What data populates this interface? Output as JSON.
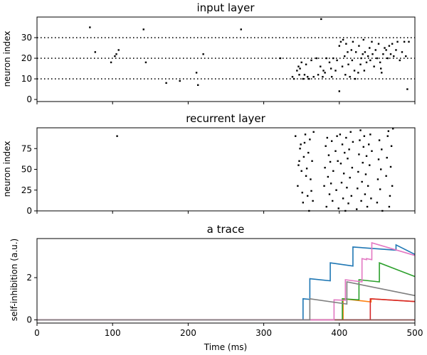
{
  "chart_data": [
    {
      "type": "scatter",
      "title": "input layer",
      "xlabel": "",
      "ylabel": "neuron index",
      "xlim": [
        0,
        500
      ],
      "ylim": [
        -1,
        40
      ],
      "yticks": [
        0,
        10,
        20,
        30
      ],
      "hlines": [
        10,
        20,
        30
      ],
      "points": [
        [
          70,
          35
        ],
        [
          77,
          23
        ],
        [
          98,
          18
        ],
        [
          103,
          21
        ],
        [
          105,
          22
        ],
        [
          108,
          24
        ],
        [
          141,
          34
        ],
        [
          144,
          18
        ],
        [
          171,
          8
        ],
        [
          189,
          9
        ],
        [
          211,
          13
        ],
        [
          213,
          7
        ],
        [
          220,
          22
        ],
        [
          270,
          34
        ],
        [
          322,
          20
        ],
        [
          338,
          11
        ],
        [
          340,
          10
        ],
        [
          344,
          14
        ],
        [
          346,
          16
        ],
        [
          347,
          12
        ],
        [
          348,
          15
        ],
        [
          350,
          18
        ],
        [
          352,
          10
        ],
        [
          354,
          12
        ],
        [
          356,
          17
        ],
        [
          358,
          11
        ],
        [
          360,
          10
        ],
        [
          363,
          19
        ],
        [
          366,
          11
        ],
        [
          370,
          20
        ],
        [
          372,
          12
        ],
        [
          375,
          16
        ],
        [
          376,
          39
        ],
        [
          378,
          11
        ],
        [
          379,
          14
        ],
        [
          381,
          13
        ],
        [
          383,
          20
        ],
        [
          387,
          18
        ],
        [
          389,
          15
        ],
        [
          390,
          11
        ],
        [
          392,
          20
        ],
        [
          395,
          14
        ],
        [
          397,
          19
        ],
        [
          400,
          4
        ],
        [
          400,
          26
        ],
        [
          402,
          28
        ],
        [
          404,
          16
        ],
        [
          405,
          29
        ],
        [
          407,
          21
        ],
        [
          408,
          12
        ],
        [
          409,
          27
        ],
        [
          411,
          23
        ],
        [
          412,
          17
        ],
        [
          414,
          11
        ],
        [
          416,
          24
        ],
        [
          417,
          19
        ],
        [
          418,
          28
        ],
        [
          420,
          14
        ],
        [
          421,
          10
        ],
        [
          422,
          23
        ],
        [
          425,
          13
        ],
        [
          426,
          26
        ],
        [
          428,
          17
        ],
        [
          429,
          20
        ],
        [
          431,
          22
        ],
        [
          432,
          29
        ],
        [
          433,
          14
        ],
        [
          434,
          23
        ],
        [
          436,
          18
        ],
        [
          438,
          21
        ],
        [
          440,
          25
        ],
        [
          441,
          19
        ],
        [
          443,
          28
        ],
        [
          444,
          22
        ],
        [
          446,
          16
        ],
        [
          448,
          24
        ],
        [
          450,
          20
        ],
        [
          452,
          27
        ],
        [
          454,
          18
        ],
        [
          456,
          13
        ],
        [
          458,
          22
        ],
        [
          460,
          25
        ],
        [
          462,
          24
        ],
        [
          464,
          20
        ],
        [
          466,
          26
        ],
        [
          468,
          22
        ],
        [
          470,
          27
        ],
        [
          472,
          21
        ],
        [
          475,
          24
        ],
        [
          477,
          28
        ],
        [
          480,
          19
        ],
        [
          483,
          23
        ],
        [
          486,
          28
        ],
        [
          488,
          21
        ],
        [
          490,
          5
        ],
        [
          492,
          28
        ],
        [
          455,
          15
        ]
      ]
    },
    {
      "type": "scatter",
      "title": "recurrent layer",
      "xlabel": "",
      "ylabel": "neuron index",
      "xlim": [
        0,
        500
      ],
      "ylim": [
        0,
        100
      ],
      "yticks": [
        0,
        25,
        50,
        75
      ],
      "points": [
        [
          106,
          90
        ],
        [
          342,
          90
        ],
        [
          345,
          30
        ],
        [
          346,
          55
        ],
        [
          347,
          60
        ],
        [
          348,
          75
        ],
        [
          349,
          80
        ],
        [
          350,
          48
        ],
        [
          351,
          22
        ],
        [
          352,
          10
        ],
        [
          353,
          65
        ],
        [
          354,
          82
        ],
        [
          355,
          92
        ],
        [
          356,
          42
        ],
        [
          357,
          51
        ],
        [
          358,
          18
        ],
        [
          359,
          70
        ],
        [
          360,
          0
        ],
        [
          361,
          86
        ],
        [
          362,
          38
        ],
        [
          363,
          24
        ],
        [
          364,
          60
        ],
        [
          365,
          12
        ],
        [
          366,
          95
        ],
        [
          380,
          30
        ],
        [
          381,
          52
        ],
        [
          382,
          78
        ],
        [
          383,
          5
        ],
        [
          384,
          88
        ],
        [
          385,
          41
        ],
        [
          386,
          67
        ],
        [
          387,
          20
        ],
        [
          388,
          59
        ],
        [
          389,
          33
        ],
        [
          390,
          84
        ],
        [
          391,
          12
        ],
        [
          392,
          48
        ],
        [
          395,
          72
        ],
        [
          396,
          25
        ],
        [
          397,
          90
        ],
        [
          398,
          60
        ],
        [
          399,
          3
        ],
        [
          401,
          92
        ],
        [
          402,
          57
        ],
        [
          403,
          34
        ],
        [
          404,
          80
        ],
        [
          405,
          15
        ],
        [
          406,
          45
        ],
        [
          407,
          70
        ],
        [
          408,
          0
        ],
        [
          409,
          88
        ],
        [
          410,
          28
        ],
        [
          411,
          63
        ],
        [
          412,
          9
        ],
        [
          413,
          74
        ],
        [
          414,
          40
        ],
        [
          415,
          95
        ],
        [
          416,
          18
        ],
        [
          417,
          52
        ],
        [
          418,
          83
        ],
        [
          423,
          2
        ],
        [
          424,
          27
        ],
        [
          425,
          47
        ],
        [
          426,
          68
        ],
        [
          427,
          85
        ],
        [
          428,
          97
        ],
        [
          429,
          12
        ],
        [
          430,
          35
        ],
        [
          431,
          58
        ],
        [
          432,
          77
        ],
        [
          433,
          90
        ],
        [
          434,
          20
        ],
        [
          435,
          44
        ],
        [
          436,
          66
        ],
        [
          437,
          5
        ],
        [
          438,
          30
        ],
        [
          439,
          80
        ],
        [
          440,
          55
        ],
        [
          441,
          92
        ],
        [
          442,
          15
        ],
        [
          443,
          72
        ],
        [
          450,
          10
        ],
        [
          451,
          38
        ],
        [
          452,
          62
        ],
        [
          453,
          85
        ],
        [
          454,
          26
        ],
        [
          455,
          50
        ],
        [
          456,
          74
        ],
        [
          457,
          0
        ],
        [
          462,
          42
        ],
        [
          463,
          64
        ],
        [
          464,
          90
        ],
        [
          465,
          96
        ],
        [
          466,
          5
        ],
        [
          467,
          18
        ],
        [
          468,
          53
        ],
        [
          469,
          78
        ],
        [
          470,
          30
        ],
        [
          471,
          99
        ]
      ]
    },
    {
      "type": "line",
      "title": "a trace",
      "xlabel": "Time (ms)",
      "ylabel": "self-inhibition (a.u.)",
      "xlim": [
        0,
        500
      ],
      "ylim": [
        -0.15,
        3.85
      ],
      "xticks": [
        0,
        100,
        200,
        300,
        400,
        500
      ],
      "yticks": [
        0,
        2
      ],
      "colors": [
        "#1f77b4",
        "#ff7f0e",
        "#2ca02c",
        "#d62728",
        "#9467bd",
        "#8c564b",
        "#e377c2",
        "#7f7f7f"
      ],
      "series": [
        {
          "x": [
            0,
            352,
            352,
            361,
            361,
            388,
            388,
            418,
            418,
            475,
            475,
            500
          ],
          "y": [
            0,
            0,
            1.0,
            0.97,
            1.95,
            1.85,
            2.7,
            2.55,
            3.45,
            3.3,
            3.55,
            3.1
          ]
        },
        {
          "x": [
            0,
            405,
            405,
            442,
            442,
            500
          ],
          "y": [
            0,
            0,
            1.0,
            0.85,
            1.0,
            0.87
          ]
        },
        {
          "x": [
            0,
            404,
            404,
            426,
            426,
            453,
            453,
            500
          ],
          "y": [
            0,
            0,
            1.0,
            0.95,
            1.9,
            1.8,
            2.7,
            2.05
          ]
        },
        {
          "x": [
            0,
            441,
            441,
            500
          ],
          "y": [
            0,
            0,
            1.0,
            0.87
          ]
        },
        {
          "x": [
            0,
            500
          ],
          "y": [
            0,
            0
          ]
        },
        {
          "x": [
            0,
            500
          ],
          "y": [
            0,
            0
          ]
        },
        {
          "x": [
            0,
            393,
            393,
            408,
            408,
            430,
            430,
            436,
            436,
            443,
            443,
            500
          ],
          "y": [
            0,
            0,
            0.95,
            0.93,
            1.9,
            1.8,
            2.9,
            2.85,
            2.9,
            2.85,
            3.65,
            3.05
          ]
        },
        {
          "x": [
            0,
            361,
            361,
            410,
            410,
            500
          ],
          "y": [
            0,
            0,
            1.0,
            0.75,
            1.8,
            1.15
          ]
        }
      ]
    }
  ]
}
